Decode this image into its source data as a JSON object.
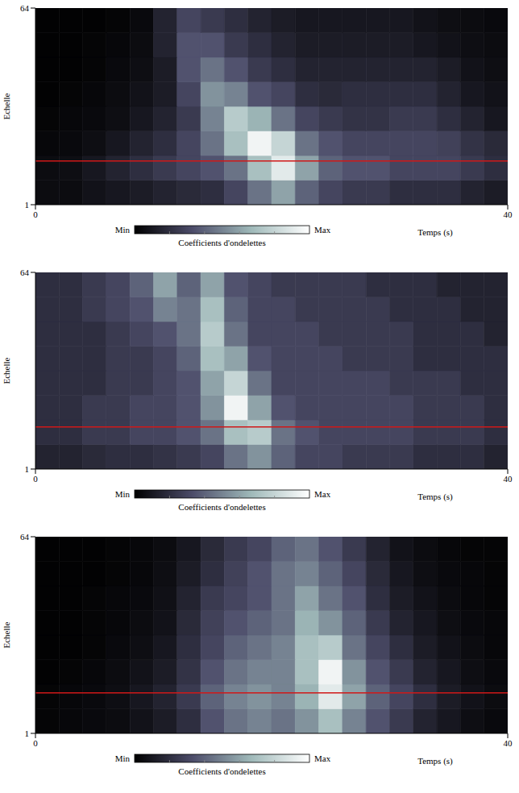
{
  "chart_data": [
    {
      "type": "heatmap",
      "x_label": "Temps (s)",
      "y_label": "Echelle",
      "xlim": [
        0,
        40
      ],
      "xticks": [
        0,
        40
      ],
      "ylim": [
        1,
        64
      ],
      "yticks": [
        1,
        64
      ],
      "x_bins": [
        0,
        2,
        4,
        6,
        8,
        10,
        12,
        14,
        16,
        18,
        20,
        22,
        24,
        26,
        28,
        30,
        32,
        34,
        36,
        38,
        40
      ],
      "y_bins": [
        1,
        8.875,
        16.75,
        24.625,
        32.5,
        40.375,
        48.25,
        56.125,
        64
      ],
      "cells": [
        [
          0.05,
          0.05,
          0.08,
          0.1,
          0.12,
          0.15,
          0.18,
          0.2,
          0.3,
          0.45,
          0.6,
          0.4,
          0.3,
          0.25,
          0.25,
          0.2,
          0.2,
          0.2,
          0.15,
          0.12
        ],
        [
          0.05,
          0.06,
          0.1,
          0.15,
          0.2,
          0.25,
          0.3,
          0.35,
          0.45,
          0.7,
          0.9,
          0.6,
          0.4,
          0.35,
          0.35,
          0.3,
          0.3,
          0.3,
          0.25,
          0.2
        ],
        [
          0.03,
          0.04,
          0.06,
          0.1,
          0.15,
          0.2,
          0.3,
          0.45,
          0.7,
          0.95,
          0.8,
          0.45,
          0.35,
          0.3,
          0.3,
          0.3,
          0.3,
          0.28,
          0.22,
          0.18
        ],
        [
          0.02,
          0.03,
          0.04,
          0.06,
          0.1,
          0.15,
          0.25,
          0.5,
          0.75,
          0.65,
          0.45,
          0.3,
          0.25,
          0.22,
          0.22,
          0.25,
          0.25,
          0.2,
          0.15,
          0.1
        ],
        [
          0.01,
          0.02,
          0.03,
          0.05,
          0.08,
          0.12,
          0.3,
          0.55,
          0.5,
          0.35,
          0.3,
          0.2,
          0.18,
          0.2,
          0.2,
          0.2,
          0.2,
          0.15,
          0.1,
          0.08
        ],
        [
          0.01,
          0.01,
          0.02,
          0.04,
          0.06,
          0.12,
          0.35,
          0.45,
          0.35,
          0.25,
          0.2,
          0.15,
          0.15,
          0.15,
          0.15,
          0.15,
          0.15,
          0.12,
          0.08,
          0.06
        ],
        [
          0.01,
          0.01,
          0.02,
          0.03,
          0.05,
          0.15,
          0.35,
          0.35,
          0.25,
          0.2,
          0.15,
          0.12,
          0.12,
          0.12,
          0.12,
          0.12,
          0.1,
          0.08,
          0.06,
          0.05
        ],
        [
          0.01,
          0.01,
          0.01,
          0.02,
          0.04,
          0.15,
          0.3,
          0.25,
          0.2,
          0.15,
          0.12,
          0.1,
          0.1,
          0.1,
          0.1,
          0.1,
          0.08,
          0.06,
          0.05,
          0.04
        ]
      ],
      "colorbar": {
        "title": "Coefficients d'ondelettes",
        "range": [
          0,
          1
        ],
        "ticks": [
          {
            "value": 0,
            "label": "Min"
          },
          {
            "value": 1,
            "label": "Max"
          }
        ],
        "colors": [
          "#000000",
          "#4d4d6a",
          "#9fb9b9",
          "#ffffff"
        ]
      },
      "reference_lines": [
        {
          "y": 15,
          "color": "#d01818"
        }
      ]
    },
    {
      "type": "heatmap",
      "x_label": "Temps (s)",
      "y_label": "Echelle",
      "xlim": [
        0,
        40
      ],
      "xticks": [
        0,
        40
      ],
      "ylim": [
        1,
        64
      ],
      "yticks": [
        1,
        64
      ],
      "x_bins": [
        0,
        2,
        4,
        6,
        8,
        10,
        12,
        14,
        16,
        18,
        20,
        22,
        24,
        26,
        28,
        30,
        32,
        34,
        36,
        38,
        40
      ],
      "y_bins": [
        1,
        8.875,
        16.75,
        24.625,
        32.5,
        40.375,
        48.25,
        56.125,
        64
      ],
      "cells": [
        [
          0.15,
          0.15,
          0.18,
          0.2,
          0.2,
          0.22,
          0.25,
          0.3,
          0.45,
          0.55,
          0.4,
          0.3,
          0.3,
          0.25,
          0.25,
          0.25,
          0.2,
          0.2,
          0.2,
          0.15
        ],
        [
          0.2,
          0.2,
          0.25,
          0.25,
          0.3,
          0.3,
          0.35,
          0.45,
          0.7,
          0.75,
          0.45,
          0.35,
          0.3,
          0.3,
          0.3,
          0.3,
          0.25,
          0.25,
          0.25,
          0.2
        ],
        [
          0.2,
          0.2,
          0.25,
          0.25,
          0.3,
          0.3,
          0.35,
          0.55,
          0.95,
          0.6,
          0.35,
          0.3,
          0.3,
          0.3,
          0.3,
          0.3,
          0.25,
          0.25,
          0.25,
          0.2
        ],
        [
          0.2,
          0.2,
          0.2,
          0.25,
          0.25,
          0.3,
          0.35,
          0.6,
          0.8,
          0.45,
          0.3,
          0.3,
          0.3,
          0.3,
          0.3,
          0.25,
          0.25,
          0.25,
          0.2,
          0.2
        ],
        [
          0.2,
          0.2,
          0.2,
          0.25,
          0.25,
          0.3,
          0.4,
          0.7,
          0.6,
          0.35,
          0.3,
          0.3,
          0.3,
          0.25,
          0.25,
          0.25,
          0.2,
          0.2,
          0.2,
          0.2
        ],
        [
          0.2,
          0.2,
          0.2,
          0.25,
          0.3,
          0.35,
          0.45,
          0.75,
          0.45,
          0.3,
          0.3,
          0.3,
          0.25,
          0.25,
          0.25,
          0.25,
          0.2,
          0.2,
          0.2,
          0.15
        ],
        [
          0.2,
          0.2,
          0.25,
          0.3,
          0.35,
          0.5,
          0.45,
          0.7,
          0.4,
          0.3,
          0.3,
          0.25,
          0.25,
          0.25,
          0.25,
          0.2,
          0.2,
          0.2,
          0.15,
          0.15
        ],
        [
          0.2,
          0.2,
          0.25,
          0.3,
          0.4,
          0.6,
          0.4,
          0.6,
          0.35,
          0.3,
          0.25,
          0.25,
          0.25,
          0.25,
          0.2,
          0.2,
          0.2,
          0.15,
          0.15,
          0.15
        ]
      ],
      "colorbar": {
        "title": "Coefficients d'ondelettes",
        "range": [
          0,
          1
        ],
        "ticks": [
          {
            "value": 0,
            "label": "Min"
          },
          {
            "value": 1,
            "label": "Max"
          }
        ],
        "colors": [
          "#000000",
          "#4d4d6a",
          "#9fb9b9",
          "#ffffff"
        ]
      },
      "reference_lines": [
        {
          "y": 14.5,
          "color": "#d01818"
        }
      ]
    },
    {
      "type": "heatmap",
      "x_label": "Temps (s)",
      "y_label": "Echelle",
      "xlim": [
        0,
        40
      ],
      "xticks": [
        0,
        40
      ],
      "ylim": [
        1,
        64
      ],
      "yticks": [
        1,
        64
      ],
      "x_bins": [
        0,
        2,
        4,
        6,
        8,
        10,
        12,
        14,
        16,
        18,
        20,
        22,
        24,
        26,
        28,
        30,
        32,
        34,
        36,
        38,
        40
      ],
      "y_bins": [
        1,
        8.875,
        16.75,
        24.625,
        32.5,
        40.375,
        48.25,
        56.125,
        64
      ],
      "cells": [
        [
          0.02,
          0.03,
          0.04,
          0.05,
          0.08,
          0.12,
          0.2,
          0.35,
          0.45,
          0.5,
          0.45,
          0.55,
          0.7,
          0.5,
          0.35,
          0.25,
          0.15,
          0.1,
          0.06,
          0.04
        ],
        [
          0.02,
          0.03,
          0.04,
          0.06,
          0.1,
          0.15,
          0.25,
          0.4,
          0.5,
          0.55,
          0.5,
          0.65,
          0.9,
          0.6,
          0.4,
          0.3,
          0.2,
          0.12,
          0.08,
          0.05
        ],
        [
          0.01,
          0.02,
          0.03,
          0.05,
          0.08,
          0.12,
          0.22,
          0.35,
          0.45,
          0.5,
          0.5,
          0.7,
          0.95,
          0.55,
          0.35,
          0.25,
          0.15,
          0.1,
          0.06,
          0.04
        ],
        [
          0.01,
          0.01,
          0.02,
          0.04,
          0.06,
          0.1,
          0.2,
          0.3,
          0.4,
          0.45,
          0.5,
          0.7,
          0.75,
          0.45,
          0.3,
          0.2,
          0.12,
          0.08,
          0.05,
          0.03
        ],
        [
          0.01,
          0.01,
          0.02,
          0.03,
          0.05,
          0.08,
          0.18,
          0.28,
          0.35,
          0.4,
          0.45,
          0.65,
          0.55,
          0.4,
          0.25,
          0.15,
          0.1,
          0.06,
          0.04,
          0.03
        ],
        [
          0.01,
          0.01,
          0.02,
          0.03,
          0.04,
          0.07,
          0.15,
          0.25,
          0.3,
          0.35,
          0.45,
          0.6,
          0.45,
          0.35,
          0.2,
          0.12,
          0.08,
          0.05,
          0.03,
          0.02
        ],
        [
          0.01,
          0.01,
          0.01,
          0.02,
          0.03,
          0.06,
          0.12,
          0.2,
          0.28,
          0.35,
          0.45,
          0.5,
          0.4,
          0.3,
          0.18,
          0.1,
          0.06,
          0.04,
          0.03,
          0.02
        ],
        [
          0.01,
          0.01,
          0.01,
          0.02,
          0.03,
          0.05,
          0.1,
          0.18,
          0.25,
          0.3,
          0.4,
          0.45,
          0.35,
          0.25,
          0.15,
          0.08,
          0.05,
          0.03,
          0.02,
          0.02
        ]
      ],
      "colorbar": {
        "title": "Coefficients d'ondelettes",
        "range": [
          0,
          1
        ],
        "ticks": [
          {
            "value": 0,
            "label": "Min"
          },
          {
            "value": 1,
            "label": "Max"
          }
        ],
        "colors": [
          "#000000",
          "#4d4d6a",
          "#9fb9b9",
          "#ffffff"
        ]
      },
      "reference_lines": [
        {
          "y": 14,
          "color": "#d01818"
        }
      ]
    }
  ]
}
